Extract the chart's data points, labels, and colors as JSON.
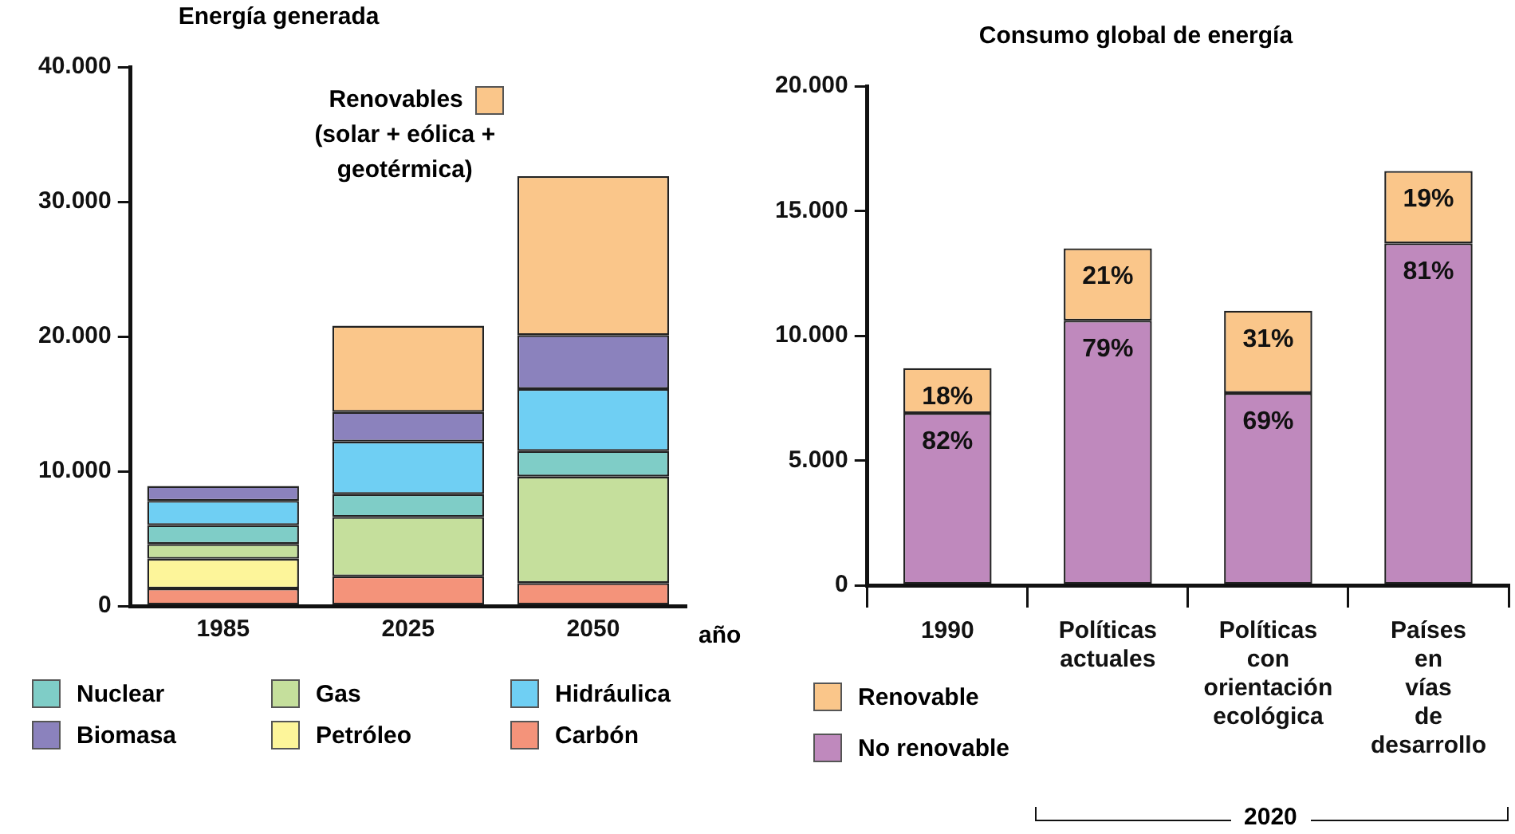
{
  "chart_data": [
    {
      "type": "bar",
      "stacked": true,
      "title": "Energía generada",
      "xlabel": "año",
      "categories": [
        "1985",
        "2025",
        "2050"
      ],
      "ylim": [
        0,
        40000
      ],
      "yticks": [
        0,
        {
          "value": 10000,
          "label": "10.000"
        },
        {
          "value": 20000,
          "label": "20.000"
        },
        {
          "value": 30000,
          "label": "30.000"
        },
        {
          "value": 40000,
          "label": "40.000"
        }
      ],
      "grid": false,
      "legend": "bottom",
      "series": [
        {
          "name": "Carbón",
          "color": "#f4937a",
          "values": [
            1300,
            2200,
            1700
          ]
        },
        {
          "name": "Petróleo",
          "color": "#fdf59a",
          "values": [
            2200,
            0,
            0
          ]
        },
        {
          "name": "Gas",
          "color": "#c5df9c",
          "values": [
            1100,
            4400,
            7900
          ]
        },
        {
          "name": "Nuclear",
          "color": "#7fcdc7",
          "values": [
            1400,
            1700,
            1900
          ]
        },
        {
          "name": "Hidráulica",
          "color": "#6fcff3",
          "values": [
            1800,
            3900,
            4600
          ]
        },
        {
          "name": "Biomasa",
          "color": "#8b82bd",
          "values": [
            1100,
            2200,
            4000
          ]
        },
        {
          "name": "Renovables (solar + eólica + geotérmica)",
          "color": "#fac68a",
          "values": [
            0,
            6400,
            11800
          ]
        }
      ]
    },
    {
      "type": "bar",
      "stacked": true,
      "title": "Consumo global de energía",
      "categories": [
        "1990",
        "Políticas actuales",
        "Políticas con orientación ecológica",
        "Países en vías de desarrollo"
      ],
      "ylim": [
        0,
        20000
      ],
      "yticks": [
        0,
        {
          "value": 5000,
          "label": "5.000"
        },
        {
          "value": 10000,
          "label": "10.000"
        },
        {
          "value": 15000,
          "label": "15.000"
        },
        {
          "value": 20000,
          "label": "20.000"
        }
      ],
      "grid": false,
      "legend": "bottom",
      "annotations": [
        "2020",
        {
          "text": "82%",
          "x": "1990",
          "y": 6900
        },
        {
          "text": "18%",
          "x": "1990",
          "y": 8700
        },
        {
          "text": "79%",
          "x": "Políticas actuales",
          "y": 10600
        },
        {
          "text": "21%",
          "x": "Políticas actuales",
          "y": 13500
        },
        {
          "text": "69%",
          "x": "Políticas con orientación ecológica",
          "y": 7700
        },
        {
          "text": "31%",
          "x": "Políticas con orientación ecológica",
          "y": 11000
        },
        {
          "text": "81%",
          "x": "Países en vías de desarrollo",
          "y": 13700
        },
        {
          "text": "19%",
          "x": "Países en vías de desarrollo",
          "y": 16600
        }
      ],
      "series": [
        {
          "name": "No renovable",
          "color": "#bf89bd",
          "values": [
            6900,
            10600,
            7700,
            13700
          ]
        },
        {
          "name": "Renovable",
          "color": "#fac68a",
          "values": [
            1800,
            2900,
            3300,
            2900
          ]
        }
      ]
    }
  ]
}
